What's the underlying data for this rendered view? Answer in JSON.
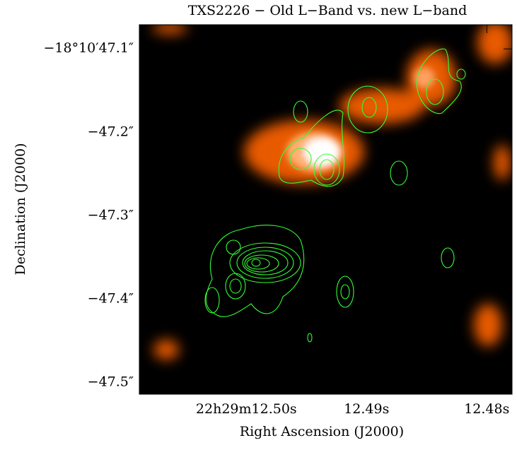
{
  "chart_data": {
    "type": "image",
    "title": "TXS2226 − Old L−Band vs. new L−band",
    "xlabel": "Right Ascension (J2000)",
    "ylabel": "Declination (J2000)",
    "xlim": [
      12.5089,
      12.4779
    ],
    "ylim": [
      -47.514,
      -47.071
    ],
    "xticks": [
      {
        "value": 12.5,
        "label": "22h29m12.50s"
      },
      {
        "value": 12.49,
        "label": "12.49s"
      },
      {
        "value": 12.48,
        "label": "12.48s"
      }
    ],
    "yticks": [
      {
        "value": -47.1,
        "label": "−18°10′47.1″"
      },
      {
        "value": -47.2,
        "label": "−47.2″"
      },
      {
        "value": -47.3,
        "label": "−47.3″"
      },
      {
        "value": -47.4,
        "label": "−47.4″"
      },
      {
        "value": -47.5,
        "label": "−47.5″"
      }
    ]
  }
}
